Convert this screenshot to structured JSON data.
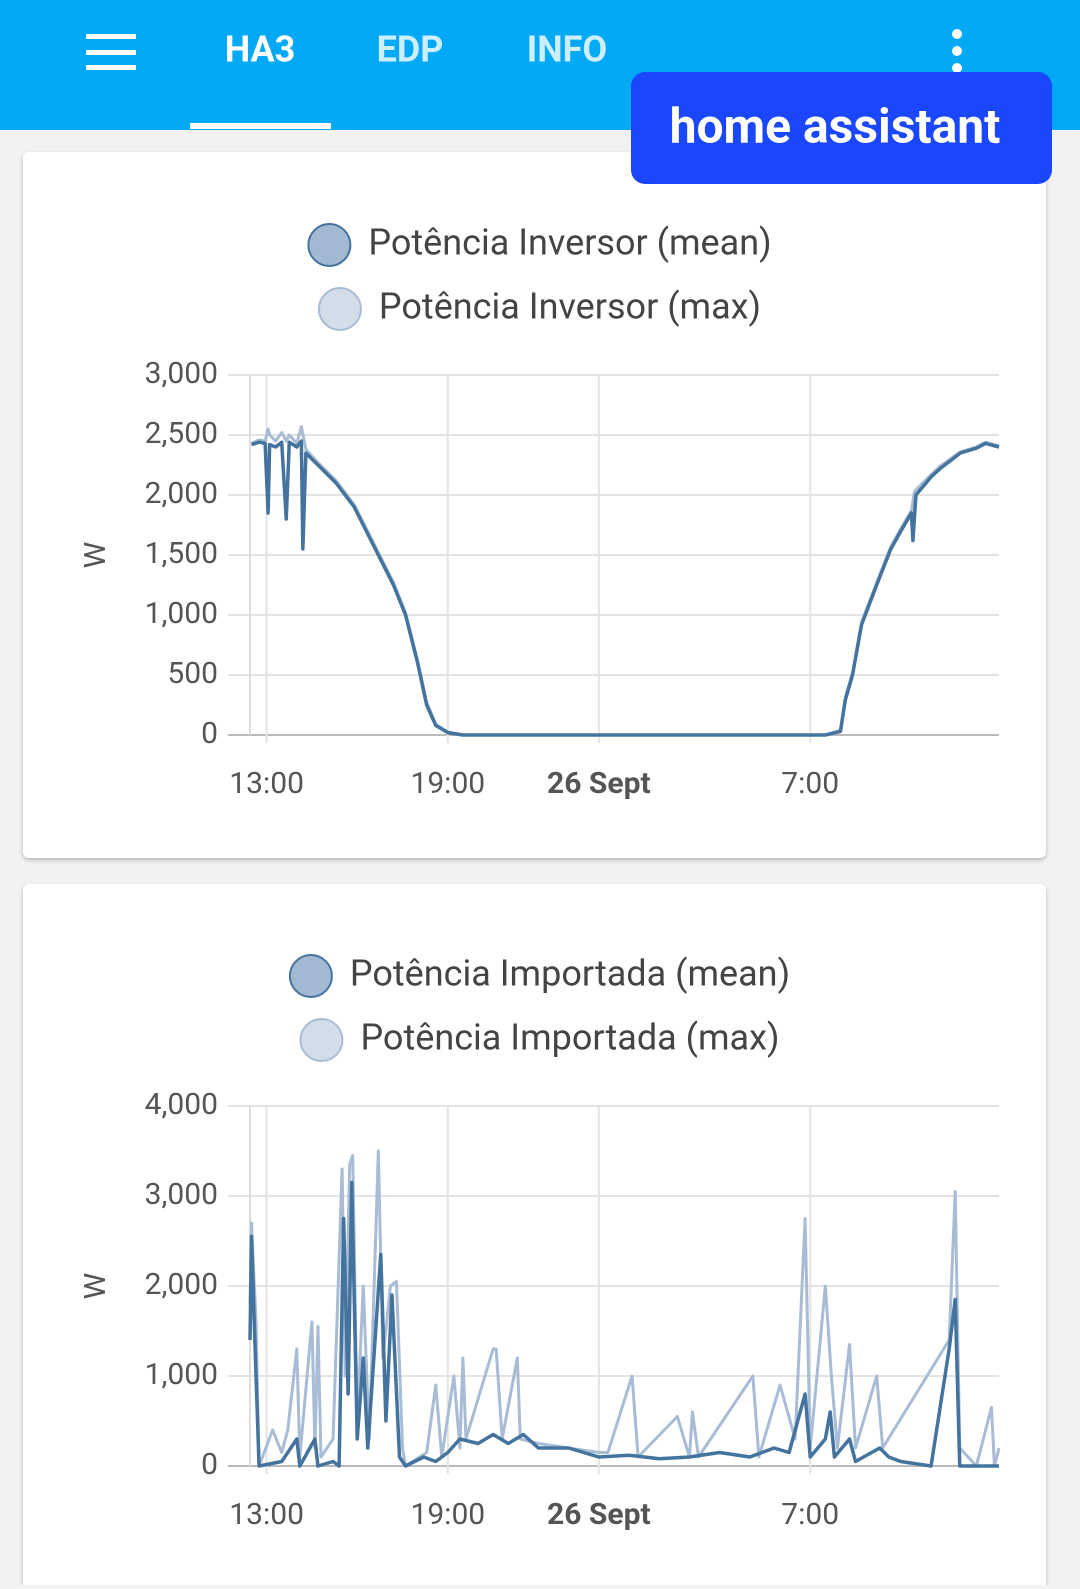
{
  "app_bar": {
    "tabs": [
      "HA3",
      "EDP",
      "INFO"
    ],
    "badge": "home assistant"
  },
  "chart_data": [
    {
      "type": "line",
      "y_label": "W",
      "grid": true,
      "xlim": [
        12.45,
        37.25
      ],
      "xticks": [
        {
          "value": 13,
          "label": "13:00"
        },
        {
          "value": 19,
          "label": "19:00"
        },
        {
          "value": 24,
          "label": "26 Sept"
        },
        {
          "value": 31,
          "label": "7:00"
        }
      ],
      "ylim": [
        0,
        3000
      ],
      "yticks": [
        0,
        500,
        {
          "value": 1000,
          "label": "1,000"
        },
        {
          "value": 1500,
          "label": "1,500"
        },
        {
          "value": 2000,
          "label": "2,000"
        },
        {
          "value": 2500,
          "label": "2,500"
        },
        {
          "value": 3000,
          "label": "3,000"
        }
      ],
      "series": [
        {
          "name": "Potência Inversor (mean)",
          "color": "#44739e",
          "legend_fill": "#a3b8d1",
          "x": [
            12.5,
            12.75,
            12.95,
            13.05,
            13.1,
            13.3,
            13.5,
            13.65,
            13.75,
            14.0,
            14.15,
            14.2,
            14.3,
            14.7,
            15.3,
            15.9,
            16.5,
            17.2,
            17.6,
            18.0,
            18.3,
            18.6,
            19.0,
            19.5,
            22,
            26,
            30,
            31.5,
            32.0,
            32.16,
            32.4,
            32.7,
            33.2,
            33.65,
            34.0,
            34.35,
            34.4,
            34.5,
            35.0,
            35.3,
            35.97,
            36.5,
            36.8,
            37.25
          ],
          "values": [
            2420,
            2440,
            2430,
            1850,
            2420,
            2400,
            2440,
            1800,
            2440,
            2400,
            2450,
            1550,
            2350,
            2250,
            2100,
            1900,
            1600,
            1250,
            1000,
            600,
            250,
            80,
            20,
            0,
            0,
            0,
            0,
            0,
            30,
            290,
            500,
            920,
            1250,
            1540,
            1700,
            1850,
            1620,
            2000,
            2150,
            2220,
            2350,
            2390,
            2430,
            2400
          ]
        },
        {
          "name": "Potência Inversor (max)",
          "color": "#a8bcd6",
          "legend_fill": "#d3dde9",
          "x": [
            12.5,
            12.75,
            12.95,
            13.05,
            13.1,
            13.3,
            13.5,
            13.65,
            13.75,
            14.0,
            14.15,
            14.3,
            14.7,
            15.3,
            15.9,
            16.5,
            17.2,
            17.6,
            18.0,
            18.3,
            18.6,
            19.0,
            19.5,
            22,
            26,
            30,
            31.5,
            32.0,
            32.16,
            32.4,
            32.7,
            33.2,
            33.65,
            34.0,
            34.35,
            34.45,
            35.0,
            35.3,
            35.97,
            36.5,
            36.8,
            37.25
          ],
          "values": [
            2430,
            2460,
            2450,
            2550,
            2500,
            2450,
            2520,
            2450,
            2500,
            2430,
            2570,
            2380,
            2270,
            2120,
            1920,
            1620,
            1270,
            1020,
            620,
            270,
            90,
            25,
            0,
            0,
            0,
            0,
            0,
            40,
            310,
            520,
            940,
            1270,
            1560,
            1720,
            1870,
            2030,
            2170,
            2240,
            2360,
            2400,
            2440,
            2410
          ]
        }
      ]
    },
    {
      "type": "line",
      "y_label": "W",
      "grid": true,
      "xlim": [
        12.45,
        37.25
      ],
      "xticks": [
        {
          "value": 13,
          "label": "13:00"
        },
        {
          "value": 19,
          "label": "19:00"
        },
        {
          "value": 24,
          "label": "26 Sept"
        },
        {
          "value": 31,
          "label": "7:00"
        }
      ],
      "ylim": [
        0,
        4000
      ],
      "yticks": [
        0,
        {
          "value": 1000,
          "label": "1,000"
        },
        {
          "value": 2000,
          "label": "2,000"
        },
        {
          "value": 3000,
          "label": "3,000"
        },
        {
          "value": 4000,
          "label": "4,000"
        }
      ],
      "series": [
        {
          "name": "Potência Importada (mean)",
          "color": "#44739e",
          "legend_fill": "#a3b8d1",
          "x": [
            12.45,
            12.5,
            12.6,
            12.75,
            13.5,
            14.0,
            14.1,
            14.6,
            14.7,
            15.2,
            15.4,
            15.55,
            15.7,
            15.82,
            16.0,
            16.2,
            16.35,
            16.78,
            16.95,
            17.15,
            17.4,
            17.6,
            18.2,
            18.6,
            19.0,
            19.4,
            20.0,
            20.5,
            21.0,
            21.5,
            22.0,
            23.0,
            23.5,
            24.0,
            25,
            26,
            27,
            28,
            29,
            29.8,
            30.3,
            30.83,
            31.0,
            31.5,
            31.66,
            31.8,
            32.3,
            32.5,
            33.3,
            33.6,
            34,
            35.0,
            35.6,
            35.8,
            35.95,
            36.5,
            37.25
          ],
          "values": [
            1400,
            2550,
            1500,
            0,
            50,
            300,
            0,
            300,
            0,
            50,
            0,
            2750,
            800,
            3150,
            300,
            1200,
            200,
            2350,
            500,
            1900,
            100,
            0,
            100,
            50,
            150,
            300,
            250,
            350,
            250,
            350,
            200,
            200,
            150,
            100,
            120,
            80,
            100,
            150,
            100,
            200,
            150,
            800,
            100,
            300,
            600,
            100,
            300,
            50,
            200,
            100,
            50,
            0,
            1300,
            1850,
            0,
            0,
            0
          ]
        },
        {
          "name": "Potência Importada (max)",
          "color": "#a8bcd6",
          "legend_fill": "#d3dde9",
          "x": [
            12.45,
            12.5,
            12.65,
            12.75,
            13.2,
            13.5,
            13.7,
            14.0,
            14.1,
            14.5,
            14.6,
            14.7,
            14.8,
            15.2,
            15.5,
            15.6,
            15.75,
            15.85,
            16.0,
            16.2,
            16.4,
            16.7,
            16.85,
            17.1,
            17.3,
            17.5,
            17.6,
            18.3,
            18.6,
            18.8,
            19.2,
            19.4,
            19.5,
            19.6,
            20.5,
            20.6,
            20.8,
            21.3,
            21.4,
            22,
            23,
            24,
            24.3,
            25.1,
            25.3,
            26.6,
            27,
            27.1,
            27.3,
            29.1,
            29.3,
            30,
            30.5,
            30.83,
            31.0,
            31.5,
            31.7,
            31.9,
            32.3,
            32.5,
            33.2,
            33.4,
            35.6,
            35.8,
            35.95,
            36.5,
            37.0,
            37.1,
            37.25
          ],
          "values": [
            1800,
            2700,
            1600,
            0,
            400,
            150,
            400,
            1300,
            100,
            1600,
            200,
            1550,
            100,
            300,
            3300,
            1000,
            3350,
            3450,
            500,
            2000,
            300,
            3500,
            1200,
            2000,
            2050,
            200,
            0,
            150,
            900,
            100,
            1000,
            200,
            1200,
            300,
            1300,
            1300,
            300,
            1200,
            300,
            250,
            200,
            150,
            150,
            1000,
            100,
            550,
            100,
            600,
            100,
            1000,
            100,
            900,
            300,
            2750,
            200,
            2000,
            1000,
            200,
            1350,
            200,
            1000,
            200,
            1400,
            3050,
            200,
            0,
            650,
            0,
            200
          ]
        }
      ]
    }
  ]
}
